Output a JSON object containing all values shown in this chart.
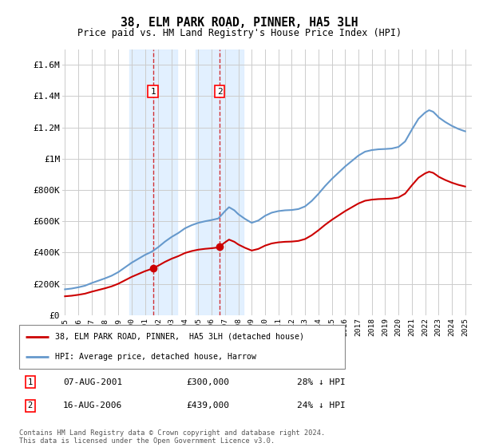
{
  "title": "38, ELM PARK ROAD, PINNER, HA5 3LH",
  "subtitle": "Price paid vs. HM Land Registry's House Price Index (HPI)",
  "ylabel_ticks": [
    "£0",
    "£200K",
    "£400K",
    "£600K",
    "£800K",
    "£1M",
    "£1.2M",
    "£1.4M",
    "£1.6M"
  ],
  "ytick_vals": [
    0,
    200000,
    400000,
    600000,
    800000,
    1000000,
    1200000,
    1400000,
    1600000
  ],
  "ylim_min": 0,
  "ylim_max": 1700000,
  "xlim_start": 1994.8,
  "xlim_end": 2025.5,
  "sale1_date": "07-AUG-2001",
  "sale1_price": 300000,
  "sale1_x": 2001.6,
  "sale1_label": "28% ↓ HPI",
  "sale2_date": "16-AUG-2006",
  "sale2_price": 439000,
  "sale2_x": 2006.6,
  "sale2_label": "24% ↓ HPI",
  "legend_line1": "38, ELM PARK ROAD, PINNER,  HA5 3LH (detached house)",
  "legend_line2": "HPI: Average price, detached house, Harrow",
  "footnote": "Contains HM Land Registry data © Crown copyright and database right 2024.\nThis data is licensed under the Open Government Licence v3.0.",
  "line_color_red": "#cc0000",
  "line_color_blue": "#6699cc",
  "shade_color": "#ddeeff",
  "grid_color": "#cccccc",
  "background_color": "#ffffff"
}
